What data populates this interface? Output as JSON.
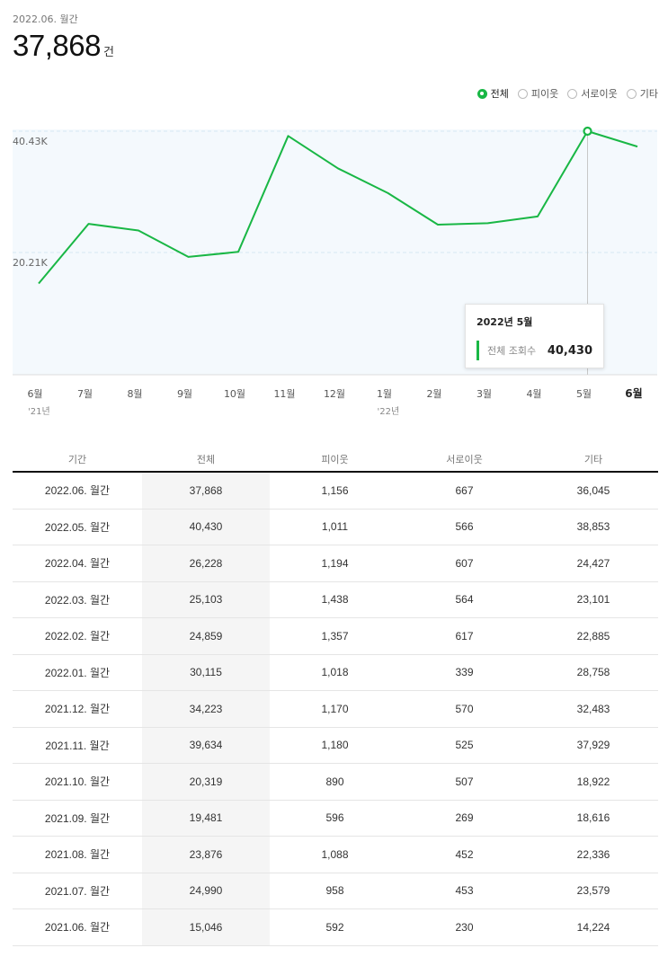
{
  "header": {
    "period": "2022.06. 월간",
    "total": "37,868",
    "unit": "건"
  },
  "legend": [
    {
      "label": "전체",
      "active": true
    },
    {
      "label": "피이웃",
      "active": false
    },
    {
      "label": "서로이웃",
      "active": false
    },
    {
      "label": "기타",
      "active": false
    }
  ],
  "colors": {
    "line": "#19b745",
    "plot_bg": "#f4f9fd",
    "grid": "#d6e6f2"
  },
  "chart_data": {
    "type": "line",
    "x_labels": [
      "6월",
      "7월",
      "8월",
      "9월",
      "10월",
      "11월",
      "12월",
      "1월",
      "2월",
      "3월",
      "4월",
      "5월",
      "6월"
    ],
    "x_sublabels": [
      "'21년",
      "",
      "",
      "",
      "",
      "",
      "",
      "'22년",
      "",
      "",
      "",
      "",
      ""
    ],
    "series": [
      {
        "name": "전체",
        "values": [
          15046,
          24990,
          23876,
          19481,
          20319,
          39634,
          34223,
          30115,
          24859,
          25103,
          26228,
          40430,
          37868
        ]
      }
    ],
    "y_ticks": [
      20215,
      40430
    ],
    "y_tick_labels": [
      "20.21K",
      "40.43K"
    ],
    "ylim": [
      0,
      40430
    ],
    "highlight_index": 11,
    "bold_index": 12,
    "grid": true
  },
  "tooltip": {
    "date": "2022년 5월",
    "label": "전체 조회수",
    "value": "40,430"
  },
  "table": {
    "headers": [
      "기간",
      "전체",
      "피이웃",
      "서로이웃",
      "기타"
    ],
    "rows": [
      [
        "2022.06. 월간",
        "37,868",
        "1,156",
        "667",
        "36,045"
      ],
      [
        "2022.05. 월간",
        "40,430",
        "1,011",
        "566",
        "38,853"
      ],
      [
        "2022.04. 월간",
        "26,228",
        "1,194",
        "607",
        "24,427"
      ],
      [
        "2022.03. 월간",
        "25,103",
        "1,438",
        "564",
        "23,101"
      ],
      [
        "2022.02. 월간",
        "24,859",
        "1,357",
        "617",
        "22,885"
      ],
      [
        "2022.01. 월간",
        "30,115",
        "1,018",
        "339",
        "28,758"
      ],
      [
        "2021.12. 월간",
        "34,223",
        "1,170",
        "570",
        "32,483"
      ],
      [
        "2021.11. 월간",
        "39,634",
        "1,180",
        "525",
        "37,929"
      ],
      [
        "2021.10. 월간",
        "20,319",
        "890",
        "507",
        "18,922"
      ],
      [
        "2021.09. 월간",
        "19,481",
        "596",
        "269",
        "18,616"
      ],
      [
        "2021.08. 월간",
        "23,876",
        "1,088",
        "452",
        "22,336"
      ],
      [
        "2021.07. 월간",
        "24,990",
        "958",
        "453",
        "23,579"
      ],
      [
        "2021.06. 월간",
        "15,046",
        "592",
        "230",
        "14,224"
      ]
    ]
  }
}
